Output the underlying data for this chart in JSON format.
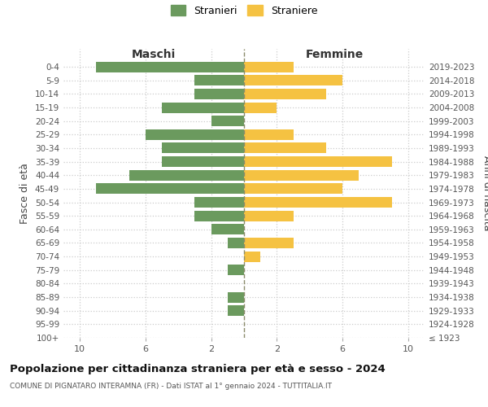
{
  "age_groups": [
    "100+",
    "95-99",
    "90-94",
    "85-89",
    "80-84",
    "75-79",
    "70-74",
    "65-69",
    "60-64",
    "55-59",
    "50-54",
    "45-49",
    "40-44",
    "35-39",
    "30-34",
    "25-29",
    "20-24",
    "15-19",
    "10-14",
    "5-9",
    "0-4"
  ],
  "birth_years": [
    "≤ 1923",
    "1924-1928",
    "1929-1933",
    "1934-1938",
    "1939-1943",
    "1944-1948",
    "1949-1953",
    "1954-1958",
    "1959-1963",
    "1964-1968",
    "1969-1973",
    "1974-1978",
    "1979-1983",
    "1984-1988",
    "1989-1993",
    "1994-1998",
    "1999-2003",
    "2004-2008",
    "2009-2013",
    "2014-2018",
    "2019-2023"
  ],
  "maschi": [
    0,
    0,
    1,
    1,
    0,
    1,
    0,
    1,
    2,
    3,
    3,
    9,
    7,
    5,
    5,
    6,
    2,
    5,
    3,
    3,
    9
  ],
  "femmine": [
    0,
    0,
    0,
    0,
    0,
    0,
    1,
    3,
    0,
    3,
    9,
    6,
    7,
    9,
    5,
    3,
    0,
    2,
    5,
    6,
    3
  ],
  "male_color": "#6b9a5e",
  "female_color": "#f5c242",
  "dashed_line_color": "#8b8b6b",
  "background_color": "#ffffff",
  "grid_color": "#cccccc",
  "title": "Popolazione per cittadinanza straniera per età e sesso - 2024",
  "subtitle": "COMUNE DI PIGNATARO INTERAMNA (FR) - Dati ISTAT al 1° gennaio 2024 - TUTTITALIA.IT",
  "xlabel_left": "Maschi",
  "xlabel_right": "Femmine",
  "ylabel_left": "Fasce di età",
  "ylabel_right": "Anni di nascita",
  "legend_male": "Stranieri",
  "legend_female": "Straniere",
  "xlim": 11,
  "fig_width": 6.0,
  "fig_height": 5.0,
  "fig_dpi": 100
}
